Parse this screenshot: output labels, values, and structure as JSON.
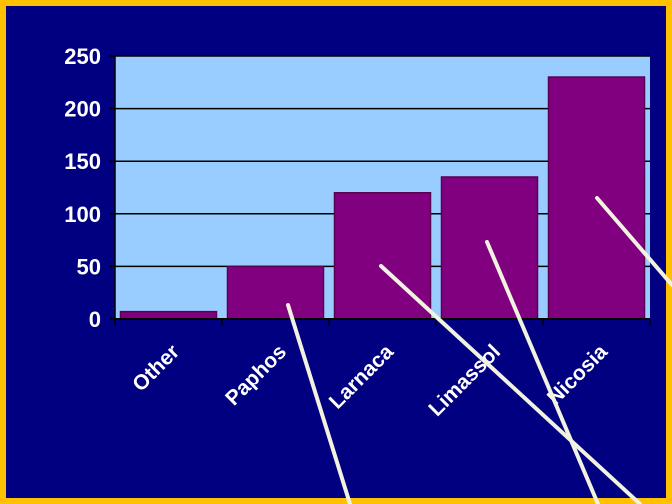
{
  "chart_data": {
    "type": "bar",
    "title": "",
    "xlabel": "",
    "ylabel": "",
    "categories": [
      "Other",
      "Paphos",
      "Larnaca",
      "Limassol",
      "Nicosia"
    ],
    "values": [
      7,
      50,
      120,
      135,
      230
    ],
    "ylim": [
      0,
      250
    ],
    "yticks": [
      0,
      50,
      100,
      150,
      200,
      250
    ],
    "grid": true,
    "legend": "none",
    "colors": {
      "bar": "#800080",
      "bar_edge": "#5a0050",
      "plot_background": "#99ccff",
      "page_background": "#000080",
      "border": "#ffc000",
      "text": "#ffffff",
      "pointer_lines": "#f2f2e0"
    }
  }
}
